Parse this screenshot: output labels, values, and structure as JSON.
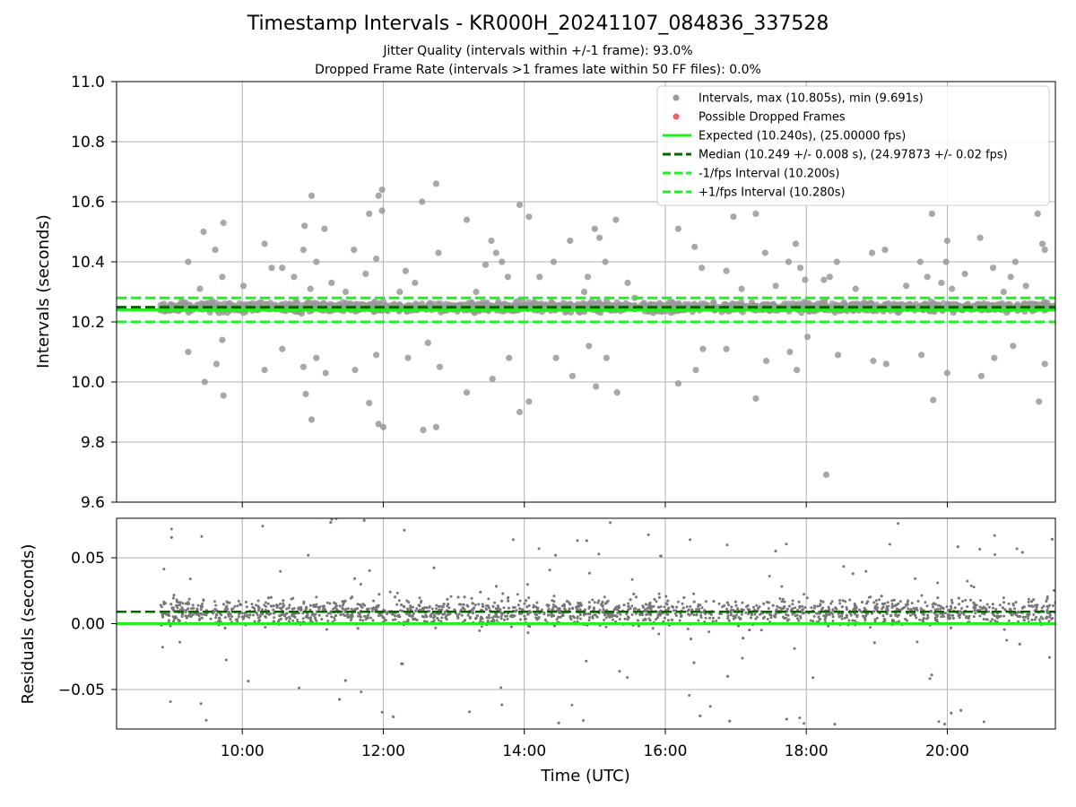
{
  "header": {
    "title": "Timestamp Intervals - KR000H_20241107_084836_337528",
    "subtitle_jitter": "Jitter Quality (intervals within +/-1 frame): 93.0%",
    "subtitle_dropped": "Dropped Frame Rate (intervals >1 frames late within 50 FF files): 0.0%"
  },
  "colors": {
    "interval_points": "#999999",
    "residual_points": "#777777",
    "dropped_frames": "#f06060",
    "expected_line": "#22ee22",
    "median_line": "#006400",
    "fps_bounds": "#22ee22",
    "grid": "#b0b0b0"
  },
  "chart_data": [
    {
      "type": "scatter",
      "panel": "intervals",
      "x_range": [
        "08:13",
        "21:32"
      ],
      "xticks": [
        "10:00",
        "12:00",
        "14:00",
        "16:00",
        "18:00",
        "20:00"
      ],
      "ylabel": "Intervals (seconds)",
      "ylim": [
        9.6,
        11.0
      ],
      "yticks": [
        "9.6",
        "9.8",
        "10.0",
        "10.2",
        "10.4",
        "10.6",
        "10.8",
        "11.0"
      ],
      "grid": true,
      "legend_position": "top-right",
      "legend": [
        {
          "label": "Intervals, max (10.805s), min (9.691s)",
          "kind": "marker",
          "color": "#999999"
        },
        {
          "label": "Possible Dropped Frames",
          "kind": "marker",
          "color": "#f06060"
        },
        {
          "label": "Expected (10.240s), (25.00000 fps)",
          "kind": "line",
          "color": "#22ee22",
          "dash": false
        },
        {
          "label": "Median (10.249 +/- 0.008 s), (24.97873 +/- 0.02 fps)",
          "kind": "line",
          "color": "#006400",
          "dash": true
        },
        {
          "label": "-1/fps Interval (10.200s)",
          "kind": "line",
          "color": "#22ee22",
          "dash": true
        },
        {
          "label": "+1/fps Interval (10.280s)",
          "kind": "line",
          "color": "#22ee22",
          "dash": true
        }
      ],
      "reference_lines": {
        "expected": 10.24,
        "median": 10.249,
        "lower": 10.2,
        "upper": 10.28
      },
      "series": [
        {
          "name": "Intervals",
          "stats": {
            "max": 10.805,
            "min": 9.691,
            "median": 10.249
          },
          "data_start": "08:50",
          "data_end": "21:32",
          "outliers": [
            {
              "t": "09:14",
              "v": 10.4
            },
            {
              "t": "09:14",
              "v": 10.1
            },
            {
              "t": "09:24",
              "v": 10.31
            },
            {
              "t": "09:27",
              "v": 10.5
            },
            {
              "t": "09:28",
              "v": 10.0
            },
            {
              "t": "09:37",
              "v": 10.44
            },
            {
              "t": "09:38",
              "v": 10.06
            },
            {
              "t": "09:43",
              "v": 10.35
            },
            {
              "t": "09:43",
              "v": 10.14
            },
            {
              "t": "09:44",
              "v": 10.53
            },
            {
              "t": "09:44",
              "v": 9.955
            },
            {
              "t": "10:01",
              "v": 10.32
            },
            {
              "t": "10:19",
              "v": 10.46
            },
            {
              "t": "10:19",
              "v": 10.04
            },
            {
              "t": "10:25",
              "v": 10.38
            },
            {
              "t": "10:34",
              "v": 10.38
            },
            {
              "t": "10:34",
              "v": 10.11
            },
            {
              "t": "10:44",
              "v": 10.35
            },
            {
              "t": "10:52",
              "v": 10.44
            },
            {
              "t": "10:52",
              "v": 10.05
            },
            {
              "t": "10:53",
              "v": 10.52
            },
            {
              "t": "10:54",
              "v": 9.96
            },
            {
              "t": "10:58",
              "v": 10.31
            },
            {
              "t": "10:59",
              "v": 10.62
            },
            {
              "t": "10:59",
              "v": 9.875
            },
            {
              "t": "11:03",
              "v": 10.4
            },
            {
              "t": "11:03",
              "v": 10.08
            },
            {
              "t": "11:10",
              "v": 10.51
            },
            {
              "t": "11:11",
              "v": 10.03
            },
            {
              "t": "11:16",
              "v": 10.33
            },
            {
              "t": "11:28",
              "v": 10.3
            },
            {
              "t": "11:35",
              "v": 10.44
            },
            {
              "t": "11:36",
              "v": 10.04
            },
            {
              "t": "11:45",
              "v": 10.36
            },
            {
              "t": "11:48",
              "v": 10.56
            },
            {
              "t": "11:48",
              "v": 9.93
            },
            {
              "t": "11:54",
              "v": 10.41
            },
            {
              "t": "11:54",
              "v": 10.09
            },
            {
              "t": "11:56",
              "v": 10.62
            },
            {
              "t": "11:56",
              "v": 9.86
            },
            {
              "t": "11:59",
              "v": 10.64
            },
            {
              "t": "11:59",
              "v": 10.57
            },
            {
              "t": "12:00",
              "v": 9.85
            },
            {
              "t": "12:14",
              "v": 10.3
            },
            {
              "t": "12:19",
              "v": 10.37
            },
            {
              "t": "12:21",
              "v": 10.08
            },
            {
              "t": "12:27",
              "v": 10.33
            },
            {
              "t": "12:33",
              "v": 10.6
            },
            {
              "t": "12:34",
              "v": 9.84
            },
            {
              "t": "12:38",
              "v": 10.13
            },
            {
              "t": "12:45",
              "v": 10.66
            },
            {
              "t": "12:45",
              "v": 9.85
            },
            {
              "t": "12:47",
              "v": 10.43
            },
            {
              "t": "12:48",
              "v": 10.05
            },
            {
              "t": "13:11",
              "v": 10.54
            },
            {
              "t": "13:11",
              "v": 9.965
            },
            {
              "t": "13:19",
              "v": 10.3
            },
            {
              "t": "13:27",
              "v": 10.39
            },
            {
              "t": "13:32",
              "v": 10.47
            },
            {
              "t": "13:33",
              "v": 10.01
            },
            {
              "t": "13:36",
              "v": 10.43
            },
            {
              "t": "13:41",
              "v": 10.4
            },
            {
              "t": "13:46",
              "v": 10.35
            },
            {
              "t": "13:47",
              "v": 10.08
            },
            {
              "t": "13:56",
              "v": 10.59
            },
            {
              "t": "13:56",
              "v": 9.9
            },
            {
              "t": "14:04",
              "v": 10.55
            },
            {
              "t": "14:04",
              "v": 9.935
            },
            {
              "t": "14:13",
              "v": 10.35
            },
            {
              "t": "14:25",
              "v": 10.4
            },
            {
              "t": "14:27",
              "v": 10.08
            },
            {
              "t": "14:39",
              "v": 10.47
            },
            {
              "t": "14:41",
              "v": 10.02
            },
            {
              "t": "14:51",
              "v": 10.3
            },
            {
              "t": "14:54",
              "v": 10.35
            },
            {
              "t": "14:55",
              "v": 10.12
            },
            {
              "t": "15:00",
              "v": 10.51
            },
            {
              "t": "15:01",
              "v": 9.985
            },
            {
              "t": "15:04",
              "v": 10.48
            },
            {
              "t": "15:09",
              "v": 10.4
            },
            {
              "t": "15:10",
              "v": 10.08
            },
            {
              "t": "15:18",
              "v": 10.54
            },
            {
              "t": "15:19",
              "v": 9.965
            },
            {
              "t": "15:28",
              "v": 10.33
            },
            {
              "t": "15:34",
              "v": 10.28
            },
            {
              "t": "16:11",
              "v": 10.51
            },
            {
              "t": "16:11",
              "v": 9.995
            },
            {
              "t": "16:25",
              "v": 10.45
            },
            {
              "t": "16:26",
              "v": 10.04
            },
            {
              "t": "16:31",
              "v": 10.38
            },
            {
              "t": "16:32",
              "v": 10.11
            },
            {
              "t": "16:52",
              "v": 10.37
            },
            {
              "t": "16:52",
              "v": 10.11
            },
            {
              "t": "16:58",
              "v": 10.55
            },
            {
              "t": "17:05",
              "v": 10.31
            },
            {
              "t": "17:17",
              "v": 10.56
            },
            {
              "t": "17:17",
              "v": 9.945
            },
            {
              "t": "17:25",
              "v": 10.43
            },
            {
              "t": "17:26",
              "v": 10.07
            },
            {
              "t": "17:34",
              "v": 10.32
            },
            {
              "t": "17:45",
              "v": 10.4
            },
            {
              "t": "17:46",
              "v": 10.1
            },
            {
              "t": "17:51",
              "v": 10.46
            },
            {
              "t": "17:52",
              "v": 10.04
            },
            {
              "t": "17:55",
              "v": 10.38
            },
            {
              "t": "17:59",
              "v": 10.34
            },
            {
              "t": "18:01",
              "v": 10.15
            },
            {
              "t": "18:15",
              "v": 10.34
            },
            {
              "t": "18:20",
              "v": 10.35
            },
            {
              "t": "18:26",
              "v": 10.4
            },
            {
              "t": "18:27",
              "v": 10.09
            },
            {
              "t": "18:42",
              "v": 10.31
            },
            {
              "t": "18:56",
              "v": 10.43
            },
            {
              "t": "18:57",
              "v": 10.07
            },
            {
              "t": "19:07",
              "v": 10.44
            },
            {
              "t": "19:08",
              "v": 10.06
            },
            {
              "t": "19:25",
              "v": 10.32
            },
            {
              "t": "19:37",
              "v": 10.4
            },
            {
              "t": "19:38",
              "v": 10.09
            },
            {
              "t": "19:43",
              "v": 10.35
            },
            {
              "t": "19:47",
              "v": 10.56
            },
            {
              "t": "19:48",
              "v": 9.94
            },
            {
              "t": "19:55",
              "v": 10.33
            },
            {
              "t": "19:59",
              "v": 10.4
            },
            {
              "t": "20:00",
              "v": 10.47
            },
            {
              "t": "20:00",
              "v": 10.03
            },
            {
              "t": "20:04",
              "v": 10.31
            },
            {
              "t": "20:15",
              "v": 10.36
            },
            {
              "t": "20:28",
              "v": 10.48
            },
            {
              "t": "20:29",
              "v": 10.02
            },
            {
              "t": "20:39",
              "v": 10.38
            },
            {
              "t": "20:40",
              "v": 10.08
            },
            {
              "t": "20:48",
              "v": 10.3
            },
            {
              "t": "20:54",
              "v": 10.35
            },
            {
              "t": "20:56",
              "v": 10.12
            },
            {
              "t": "20:58",
              "v": 10.4
            },
            {
              "t": "21:07",
              "v": 10.32
            },
            {
              "t": "21:17",
              "v": 10.56
            },
            {
              "t": "21:18",
              "v": 9.935
            },
            {
              "t": "21:21",
              "v": 10.46
            },
            {
              "t": "21:23",
              "v": 10.44
            },
            {
              "t": "21:23",
              "v": 10.06
            },
            {
              "t": "18:17",
              "v": 9.691
            }
          ]
        },
        {
          "name": "Possible Dropped Frames",
          "values": []
        }
      ]
    },
    {
      "type": "scatter",
      "panel": "residuals",
      "xlabel": "Time (UTC)",
      "xticks": [
        "10:00",
        "12:00",
        "14:00",
        "16:00",
        "18:00",
        "20:00"
      ],
      "ylabel": "Residuals (seconds)",
      "ylim": [
        -0.08,
        0.08
      ],
      "yticks": [
        "−0.05",
        "0.00",
        "0.05"
      ],
      "grid": true,
      "reference_lines": {
        "zero": 0.0,
        "median": 0.009
      },
      "series": [
        {
          "name": "Residuals",
          "center": 0.009,
          "spread": 0.012,
          "range": [
            -0.08,
            0.08
          ]
        }
      ]
    }
  ]
}
